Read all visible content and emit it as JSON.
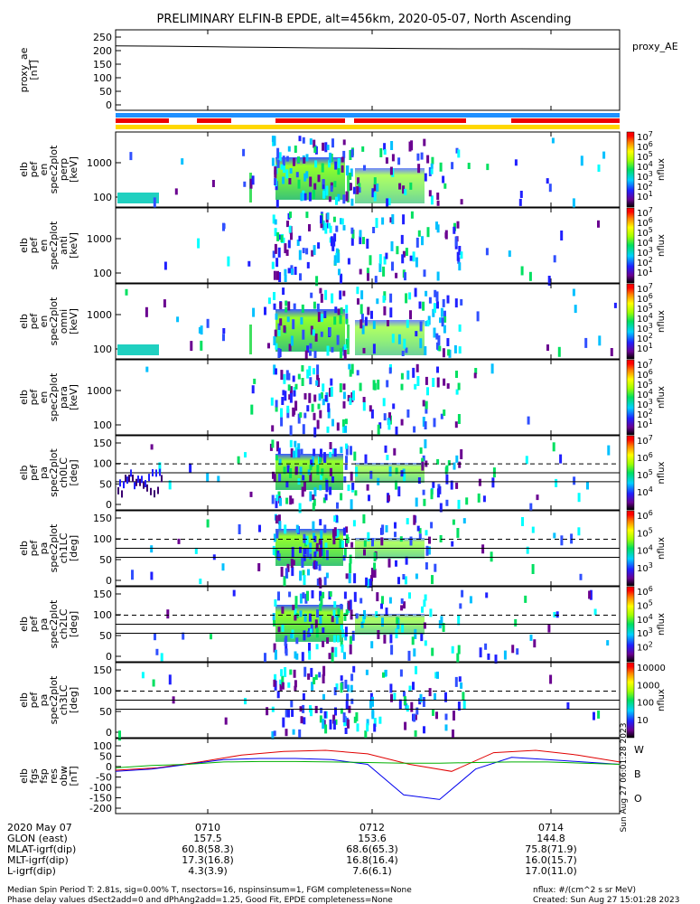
{
  "title": "PRELIMINARY ELFIN-B EPDE, alt=456km, 2020-05-07, North Ascending",
  "panels": [
    {
      "id": "proxy_ae",
      "type": "line",
      "ylabel": [
        "proxy_ae",
        "[nT]"
      ],
      "right_label": "proxy_AE",
      "yrange": [
        -20,
        260
      ],
      "yticks": [
        "250",
        "200",
        "150",
        "100",
        "50",
        "0"
      ]
    },
    {
      "id": "pef_en_perp",
      "type": "heatmap",
      "ylabel": [
        "elb",
        "pef",
        "en",
        "spec2plot",
        "perp",
        "[keV]"
      ],
      "yticks": [
        "1000",
        "100"
      ],
      "colorbar": {
        "unit": "nflux",
        "labels": [
          "10^7",
          "10^6",
          "10^5",
          "10^4",
          "10^3",
          "10^2",
          "10^1"
        ]
      }
    },
    {
      "id": "pef_en_anti",
      "type": "heatmap",
      "ylabel": [
        "elb",
        "pef",
        "en",
        "spec2plot",
        "anti",
        "[keV]"
      ],
      "yticks": [
        "1000",
        "100"
      ],
      "colorbar": {
        "unit": "nflux",
        "labels": [
          "10^7",
          "10^6",
          "10^5",
          "10^4",
          "10^3",
          "10^2",
          "10^1"
        ]
      }
    },
    {
      "id": "pef_en_omni",
      "type": "heatmap",
      "ylabel": [
        "elb",
        "pef",
        "en",
        "spec2plot",
        "omni",
        "[keV]"
      ],
      "yticks": [
        "1000",
        "100"
      ],
      "colorbar": {
        "unit": "nflux",
        "labels": [
          "10^7",
          "10^6",
          "10^5",
          "10^4",
          "10^3",
          "10^2",
          "10^1"
        ]
      }
    },
    {
      "id": "pef_en_para",
      "type": "heatmap",
      "ylabel": [
        "elb",
        "pef",
        "en",
        "spec2plot",
        "para",
        "[keV]"
      ],
      "yticks": [
        "1000",
        "100"
      ],
      "colorbar": {
        "unit": "nflux",
        "labels": [
          "10^7",
          "10^6",
          "10^5",
          "10^4",
          "10^3",
          "10^2",
          "10^1"
        ]
      }
    },
    {
      "id": "pef_ch0LC",
      "type": "heatmap",
      "ylabel": [
        "elb",
        "pef",
        "pa",
        "spec2plot",
        "ch0LC",
        "[deg]"
      ],
      "yticks": [
        "150",
        "100",
        "50",
        "0"
      ],
      "colorbar": {
        "unit": "nflux",
        "labels": [
          "10^7",
          "10^6",
          "10^5",
          "10^4"
        ]
      }
    },
    {
      "id": "pef_ch1LC",
      "type": "heatmap",
      "ylabel": [
        "elb",
        "pef",
        "pa",
        "spec2plot",
        "ch1LC",
        "[deg]"
      ],
      "yticks": [
        "150",
        "100",
        "50",
        "0"
      ],
      "colorbar": {
        "unit": "nflux",
        "labels": [
          "10^6",
          "10^5",
          "10^4",
          "10^3"
        ]
      }
    },
    {
      "id": "pef_ch2LC",
      "type": "heatmap",
      "ylabel": [
        "elb",
        "pef",
        "pa",
        "spec2plot",
        "ch2LC",
        "[deg]"
      ],
      "yticks": [
        "150",
        "100",
        "50",
        "0"
      ],
      "colorbar": {
        "unit": "nflux",
        "labels": [
          "10^6",
          "10^5",
          "10^4",
          "10^3",
          "10^2"
        ]
      }
    },
    {
      "id": "pef_ch3LC",
      "type": "heatmap",
      "ylabel": [
        "elb",
        "pef",
        "pa",
        "spec2plot",
        "ch3LC",
        "[deg]"
      ],
      "yticks": [
        "150",
        "100",
        "50",
        "0"
      ],
      "colorbar": {
        "unit": "nflux",
        "labels": [
          "10000",
          "1000",
          "100",
          "10"
        ]
      }
    },
    {
      "id": "fgs_res",
      "type": "line",
      "ylabel": [
        "elb",
        "fgs",
        "fsp",
        "res",
        "obw",
        "[nT]"
      ],
      "yrange": [
        -210,
        110
      ],
      "yticks": [
        "100",
        "50",
        "0",
        "-50",
        "-100",
        "-150",
        "-200"
      ],
      "legend": [
        "W",
        "B",
        "O"
      ]
    }
  ],
  "chart_data": {
    "type": "line",
    "x_ticks": [
      "0710",
      "0712",
      "0714"
    ],
    "series": [
      {
        "name": "proxy_AE",
        "values": [
          204,
          203,
          201,
          199,
          197,
          196,
          195,
          194,
          194,
          193,
          193
        ]
      },
      {
        "name": "W",
        "values": [
          -25,
          -15,
          10,
          40,
          55,
          60,
          45,
          0,
          -30,
          50,
          60,
          40,
          10
        ]
      },
      {
        "name": "B",
        "values": [
          -30,
          -20,
          0,
          20,
          25,
          25,
          20,
          0,
          -130,
          -150,
          -20,
          30,
          20,
          10,
          0
        ]
      },
      {
        "name": "O",
        "values": [
          -15,
          -5,
          0,
          10,
          12,
          12,
          10,
          8,
          5,
          5,
          8,
          10,
          10,
          5,
          0
        ]
      }
    ]
  },
  "footer": {
    "rows": [
      {
        "label": "2020 May 07",
        "v1": "0710",
        "v2": "0712",
        "v3": "0714"
      },
      {
        "label": "GLON (east)",
        "v1": "157.5",
        "v2": "153.6",
        "v3": "144.8"
      },
      {
        "label": "MLAT-igrf(dip)",
        "v1": "60.8(58.3)",
        "v2": "68.6(65.3)",
        "v3": "75.8(71.9)"
      },
      {
        "label": "MLT-igrf(dip)",
        "v1": "17.3(16.8)",
        "v2": "16.8(16.4)",
        "v3": "16.0(15.7)"
      },
      {
        "label": "L-igrf(dip)",
        "v1": "4.3(3.9)",
        "v2": "7.6(6.1)",
        "v3": "17.0(11.0)"
      }
    ],
    "note1": "Median Spin Period T: 2.81s, sig=0.00% T, nsectors=16, nspinsinsum=1, FGM completeness=None",
    "note2": "Phase delay values dSect2add=0 and dPhAng2add=1.25, Good Fit, EPDE completeness=None",
    "unit_note": "nflux: #/(cm^2 s sr MeV)",
    "created": "Created: Sun Aug 27 15:01:28 2023",
    "side_stamp": "Sun Aug 27 06:01:28 2023"
  }
}
